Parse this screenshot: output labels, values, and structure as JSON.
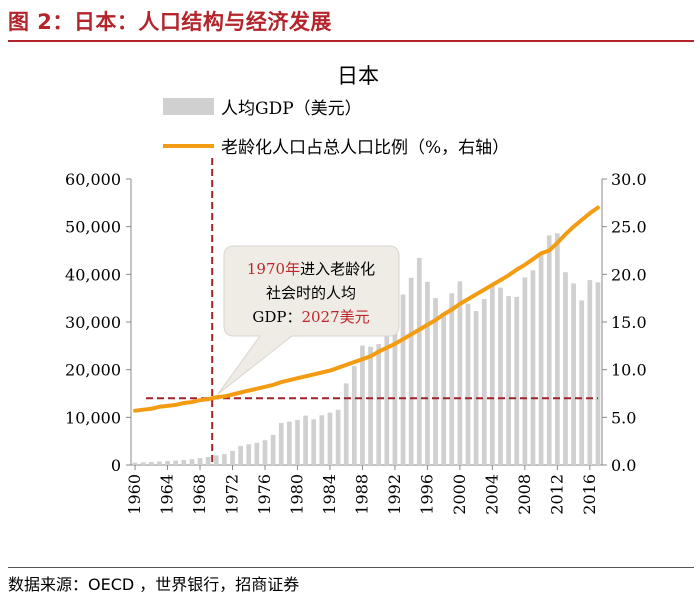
{
  "figure": {
    "title": "图 2：日本：人口结构与经济发展",
    "source": "数据来源：OECD ，世界银行，招商证券"
  },
  "colors": {
    "title_red": "#b3242b",
    "bar_gray": "#d0d0d0",
    "line_orange": "#f39c12",
    "dashed_red": "#a0232a"
  },
  "chart_data": {
    "type": "bar+line",
    "title": "日本",
    "legend": {
      "bar": "人均GDP（美元）",
      "line": "老龄化人口占总人口比例（%，右轴）"
    },
    "left_axis": {
      "range": [
        0,
        60000
      ],
      "ticks": [
        0,
        10000,
        20000,
        30000,
        40000,
        50000,
        60000
      ],
      "tick_labels": [
        "0",
        "10,000",
        "20,000",
        "30,000",
        "40,000",
        "50,000",
        "60,000"
      ]
    },
    "right_axis": {
      "range": [
        0,
        30
      ],
      "ticks": [
        0,
        5,
        10,
        15,
        20,
        25,
        30
      ],
      "tick_labels": [
        "0.0",
        "5.0",
        "10.0",
        "15.0",
        "20.0",
        "25.0",
        "30.0"
      ]
    },
    "x_tick_labels": [
      "1960",
      "1964",
      "1968",
      "1972",
      "1976",
      "1980",
      "1984",
      "1988",
      "1992",
      "1996",
      "2000",
      "2004",
      "2008",
      "2012",
      "2016"
    ],
    "years": [
      1960,
      1961,
      1962,
      1963,
      1964,
      1965,
      1966,
      1967,
      1968,
      1969,
      1970,
      1971,
      1972,
      1973,
      1974,
      1975,
      1976,
      1977,
      1978,
      1979,
      1980,
      1981,
      1982,
      1983,
      1984,
      1985,
      1986,
      1987,
      1988,
      1989,
      1990,
      1991,
      1992,
      1993,
      1994,
      1995,
      1996,
      1997,
      1998,
      1999,
      2000,
      2001,
      2002,
      2003,
      2004,
      2005,
      2006,
      2007,
      2008,
      2009,
      2010,
      2011,
      2012,
      2013,
      2014,
      2015,
      2016,
      2017
    ],
    "gdp_per_capita": [
      479,
      564,
      633,
      718,
      836,
      919,
      1058,
      1229,
      1450,
      1669,
      2027,
      2273,
      2967,
      3997,
      4354,
      4659,
      5197,
      6335,
      8821,
      9105,
      9465,
      10361,
      9578,
      10425,
      10984,
      11585,
      17111,
      20745,
      25052,
      24813,
      25359,
      28925,
      31465,
      35766,
      39269,
      43440,
      38437,
      35022,
      31903,
      36027,
      38532,
      33846,
      32289,
      34808,
      37689,
      37218,
      35434,
      35275,
      39339,
      40855,
      44508,
      48168,
      48603,
      40454,
      38109,
      34524,
      38794,
      38332
    ],
    "aging_ratio": [
      5.7,
      5.8,
      5.9,
      6.1,
      6.2,
      6.3,
      6.5,
      6.6,
      6.8,
      6.9,
      7.1,
      7.2,
      7.4,
      7.6,
      7.8,
      8.0,
      8.2,
      8.4,
      8.7,
      8.9,
      9.1,
      9.3,
      9.5,
      9.7,
      9.9,
      10.2,
      10.5,
      10.8,
      11.1,
      11.4,
      11.9,
      12.3,
      12.7,
      13.2,
      13.7,
      14.2,
      14.7,
      15.2,
      15.8,
      16.3,
      16.9,
      17.4,
      17.9,
      18.4,
      18.9,
      19.4,
      19.9,
      20.5,
      21.0,
      21.6,
      22.2,
      22.5,
      23.3,
      24.2,
      25.0,
      25.7,
      26.4,
      27.0
    ],
    "threshold_year": 1970,
    "threshold_ratio": 7.0,
    "annotation": {
      "line1_red": "1970年",
      "line1_black": "进入老龄化",
      "line2": "社会时的人均",
      "line3_black": "GDP：",
      "line3_red": "2027美元"
    }
  }
}
